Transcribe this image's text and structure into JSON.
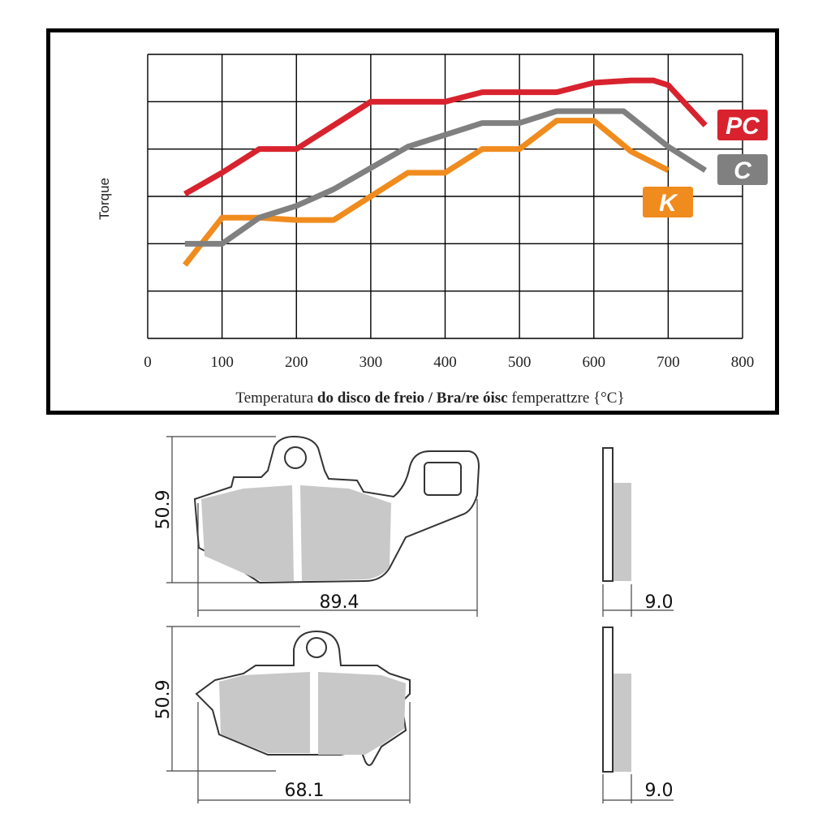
{
  "chart_data": {
    "type": "line",
    "xlabel_parts": [
      {
        "text": "Temperatura ",
        "bold": false
      },
      {
        "text": "do disco de freio / Bra/re óisc",
        "bold": true
      },
      {
        "text": " femperattzre {°C}",
        "bold": false
      }
    ],
    "ylabel": "Torque",
    "xlim": [
      0,
      800
    ],
    "x_ticks": [
      "0",
      "100",
      "200",
      "300",
      "400",
      "500",
      "600",
      "700",
      "800"
    ],
    "ylim": [
      0,
      6
    ],
    "grid": true,
    "legend_placement": "right, labels at line ends",
    "series": [
      {
        "name": "PC",
        "color": "#d8232e",
        "x": [
          50,
          100,
          150,
          200,
          250,
          300,
          350,
          400,
          450,
          500,
          550,
          600,
          650,
          680,
          700,
          750
        ],
        "y": [
          3.05,
          3.5,
          4.0,
          4.0,
          4.5,
          5.0,
          5.0,
          5.0,
          5.2,
          5.2,
          5.2,
          5.4,
          5.45,
          5.45,
          5.35,
          4.5
        ]
      },
      {
        "name": "C",
        "color": "#808080",
        "x": [
          50,
          100,
          150,
          200,
          250,
          300,
          350,
          400,
          450,
          500,
          550,
          600,
          640,
          700,
          750
        ],
        "y": [
          2.0,
          2.0,
          2.55,
          2.8,
          3.15,
          3.6,
          4.05,
          4.3,
          4.55,
          4.55,
          4.8,
          4.8,
          4.8,
          4.05,
          3.55
        ]
      },
      {
        "name": "K",
        "color": "#f08c1e",
        "x": [
          50,
          100,
          150,
          200,
          250,
          300,
          350,
          400,
          450,
          500,
          550,
          600,
          650,
          700
        ],
        "y": [
          1.55,
          2.55,
          2.55,
          2.5,
          2.5,
          3.0,
          3.5,
          3.5,
          4.0,
          4.0,
          4.6,
          4.6,
          3.95,
          3.55
        ]
      }
    ]
  },
  "drawings": {
    "pad_1_height": "50.9",
    "pad_1_width": "89.4",
    "pad_1_thickness": "9.0",
    "pad_2_height": "50.9",
    "pad_2_width": "68.1",
    "pad_2_thickness": "9.0",
    "pad_fill": "#c8c8c8"
  }
}
